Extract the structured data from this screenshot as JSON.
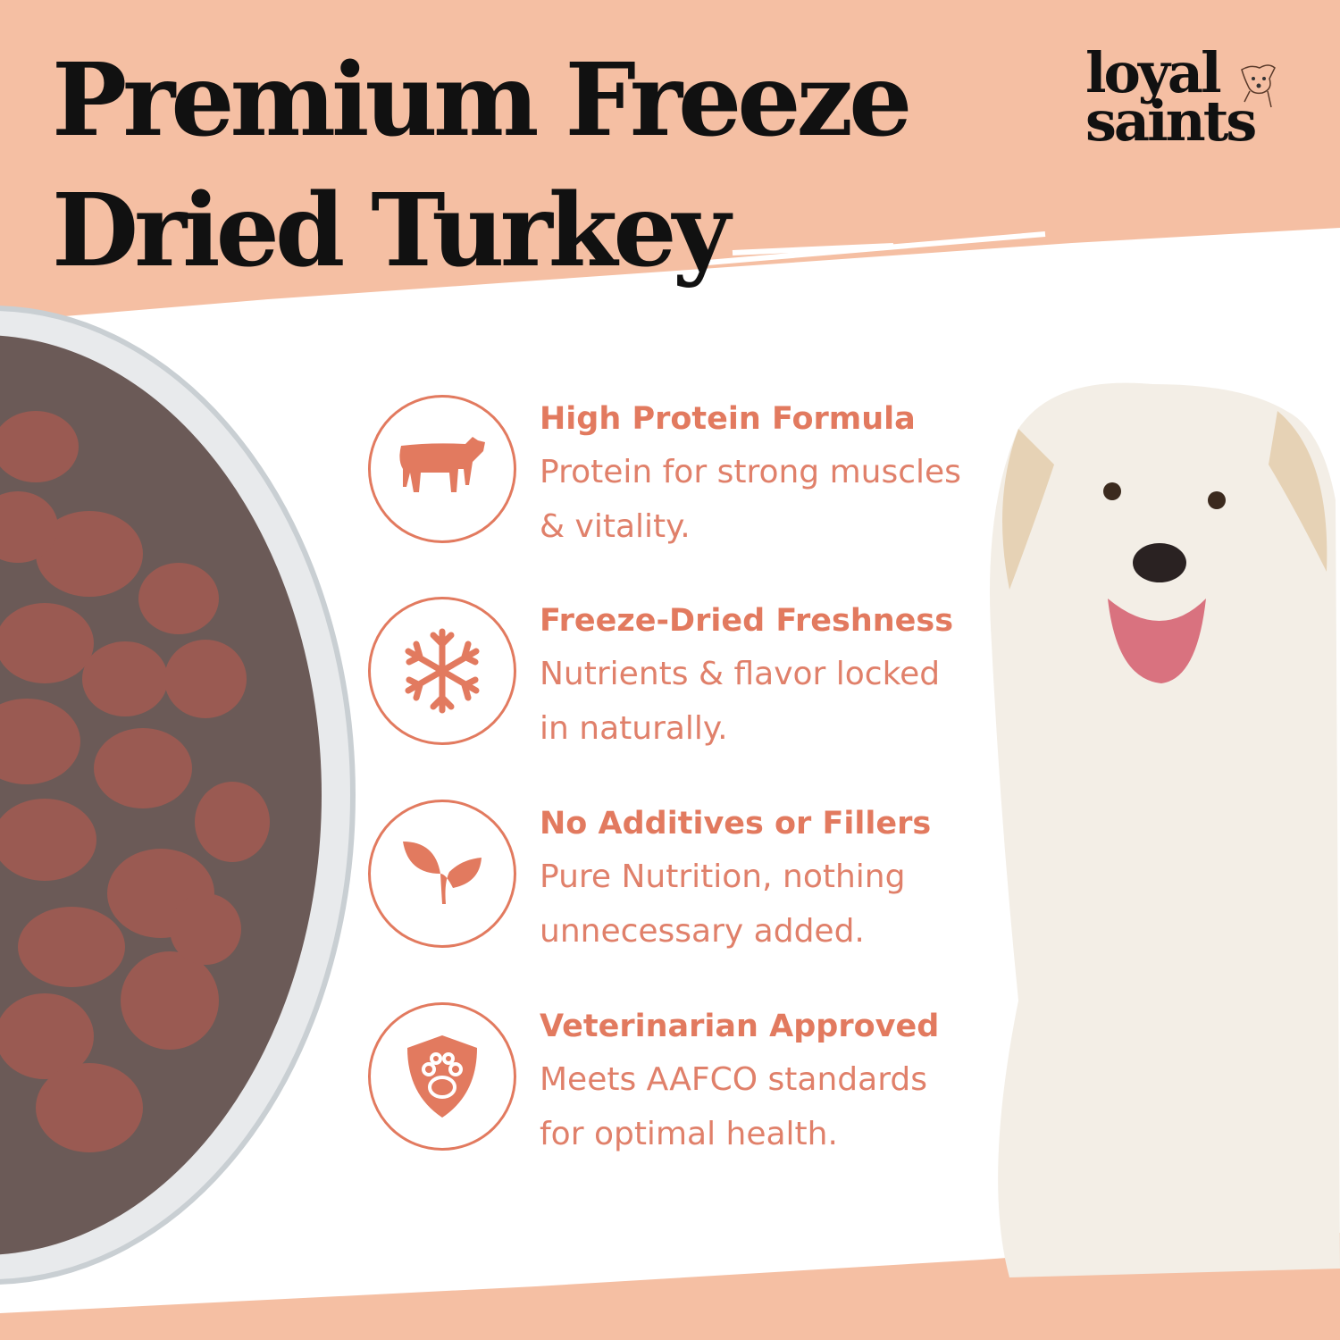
{
  "title": {
    "line1": "Premium Freeze",
    "line2": "Dried Turkey"
  },
  "logo": {
    "line1": "loyal",
    "line2": "saints"
  },
  "colors": {
    "background": "#F5BFA3",
    "accent": "#E27A5F",
    "title": "#111111",
    "band": "#FFFFFF"
  },
  "features": [
    {
      "icon": "cow-icon",
      "heading": "High Protein Formula",
      "body": "Protein for strong muscles\n & vitality."
    },
    {
      "icon": "snowflake-icon",
      "heading": "Freeze-Dried Freshness",
      "body": "Nutrients & flavor locked\nin naturally."
    },
    {
      "icon": "leaf-icon",
      "heading": "No Additives or Fillers",
      "body": "Pure Nutrition, nothing\nunnecessary added."
    },
    {
      "icon": "paw-shield-icon",
      "heading": "Veterinarian Approved",
      "body": "Meets AAFCO standards\nfor optimal health."
    }
  ]
}
